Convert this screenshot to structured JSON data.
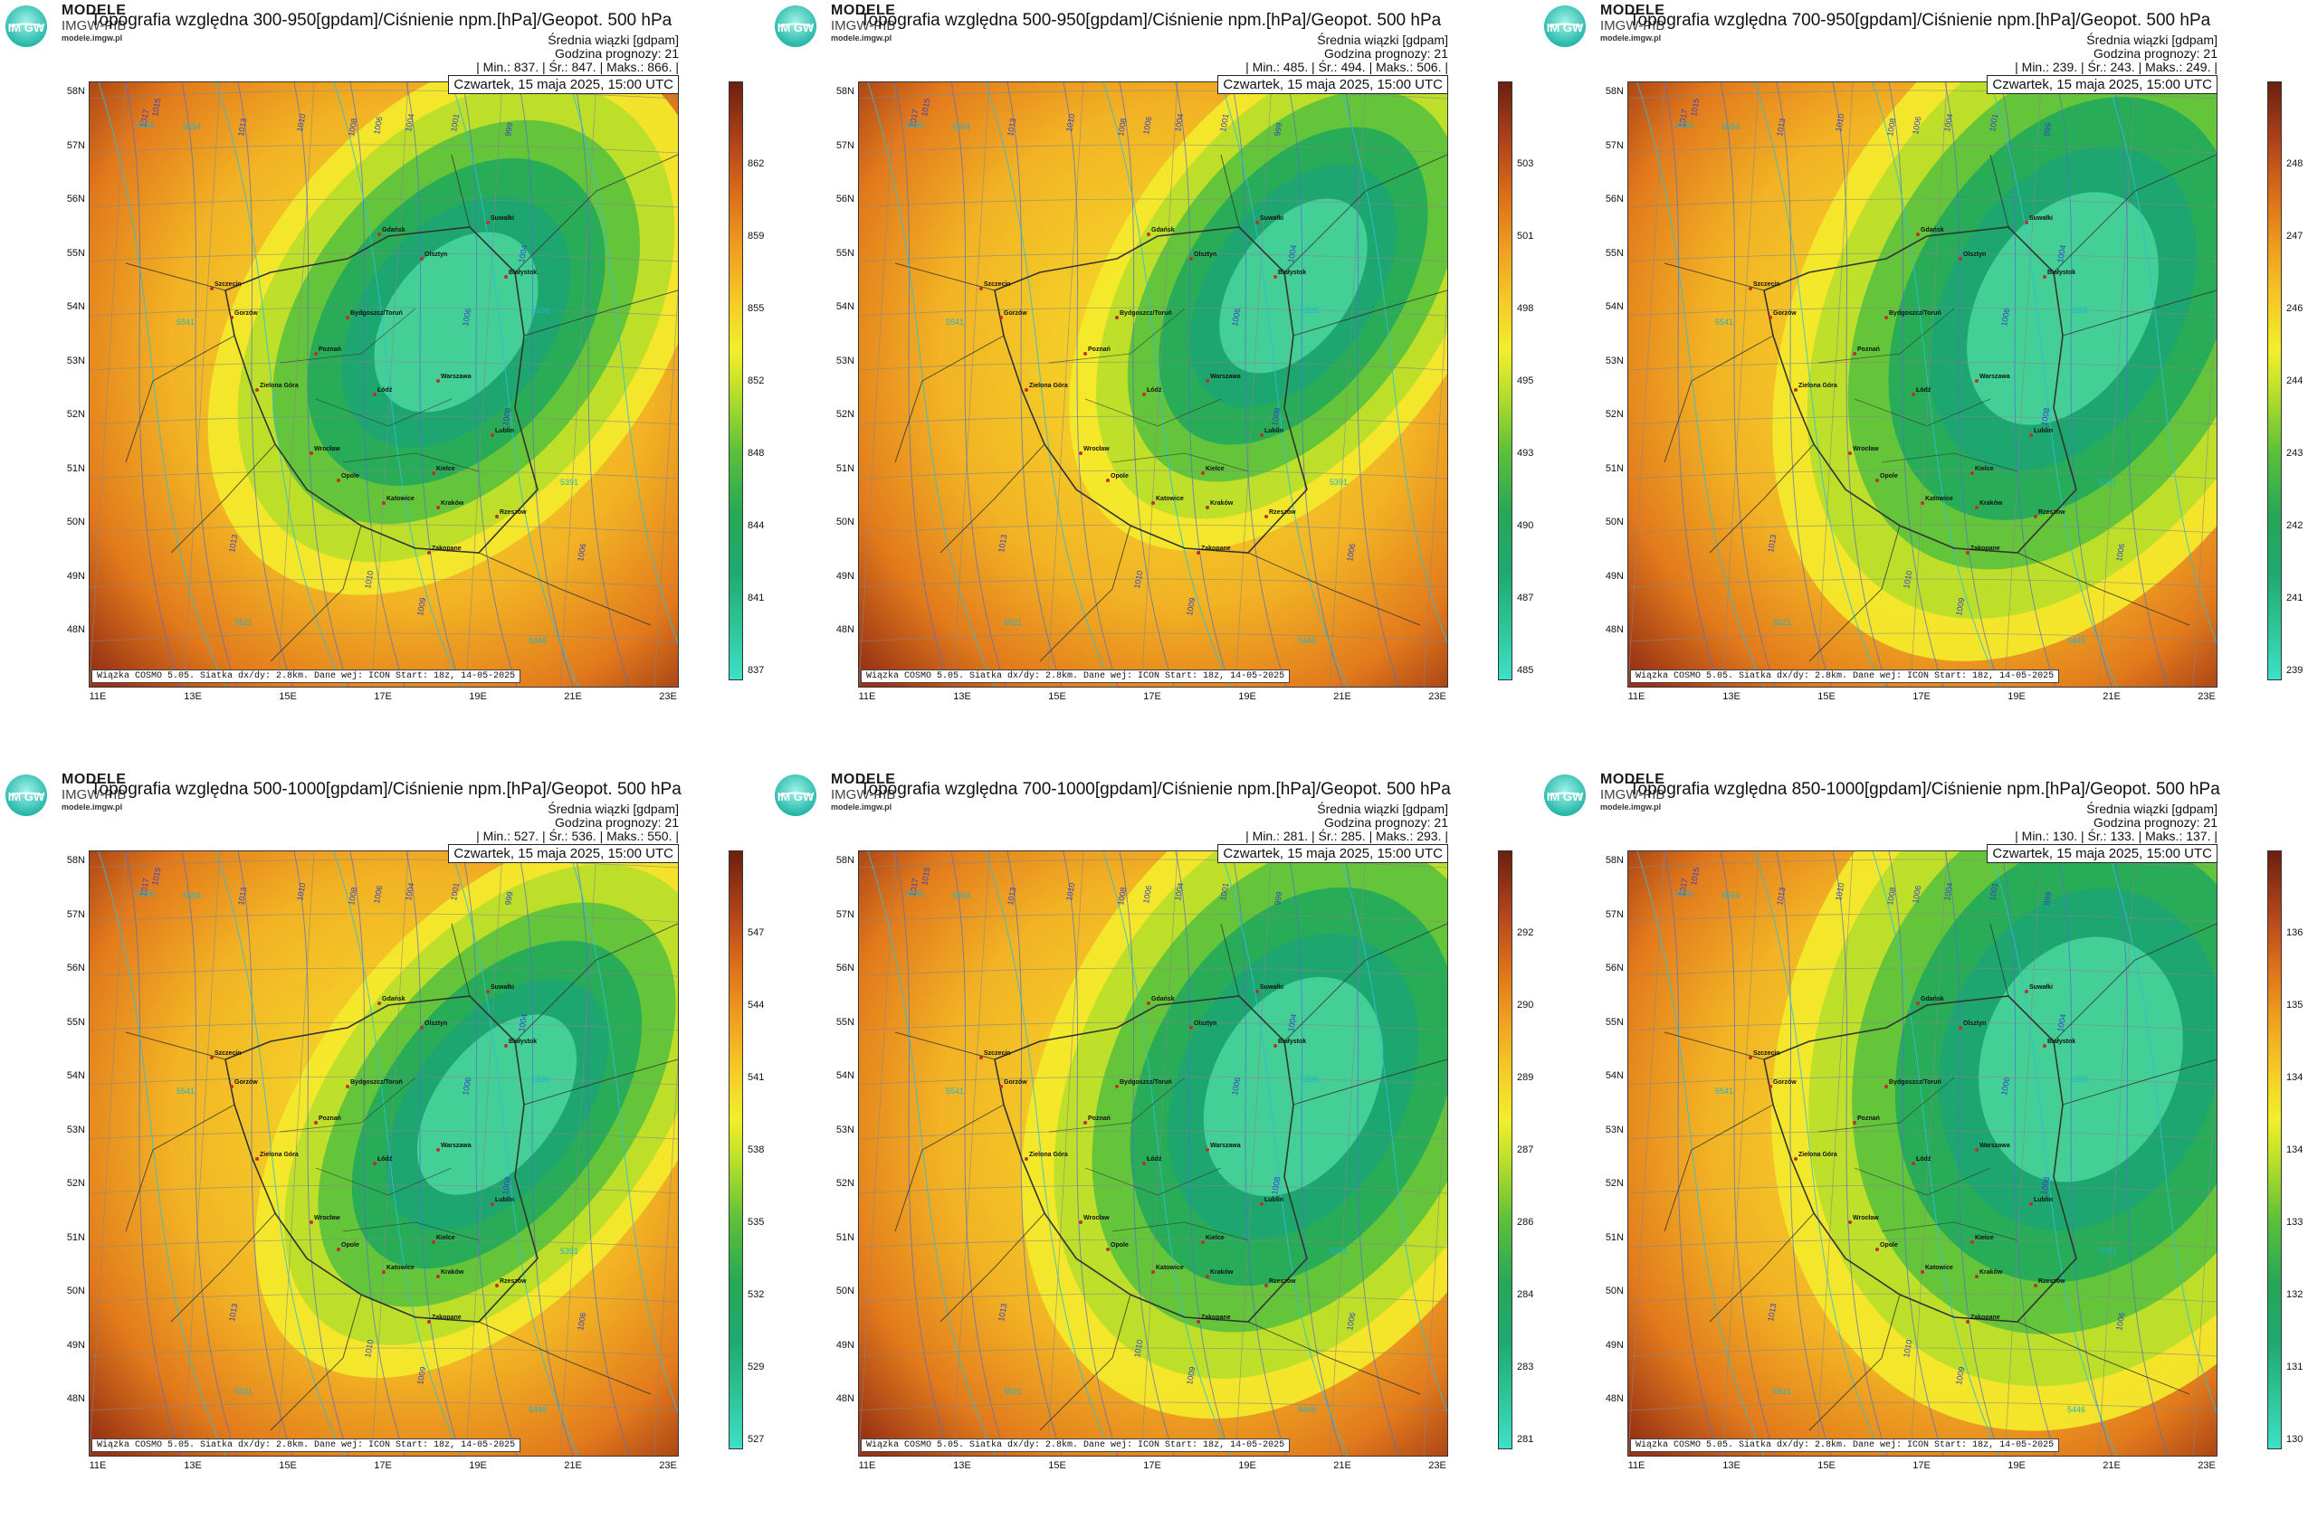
{
  "brand": {
    "line1": "MODELE",
    "line2": "IMGW-PIB",
    "url": "modele.imgw.pl",
    "logo_text": "IM GW"
  },
  "colors": {
    "cold": "#3de0c9",
    "green": "#1fa971",
    "yellow": "#f2ef2a",
    "orange": "#ef9f20",
    "hot": "#6b2010",
    "isobar": "#3340c8",
    "geopot": "#1bb4d0"
  },
  "common": {
    "subtitle": "Średnia wiązki [gdpam]",
    "forecast_hour": "Godzina prognozy: 21",
    "date": "Czwartek, 15 maja 2025, 15:00 UTC",
    "footer": "Wiązka COSMO 5.05. Siatka dx/dy: 2.8km. Dane wej: ICON Start: 18z, 14-05-2025",
    "lat_labels": [
      "58N",
      "57N",
      "56N",
      "55N",
      "54N",
      "53N",
      "52N",
      "51N",
      "50N",
      "49N",
      "48N"
    ],
    "lon_labels": [
      "11E",
      "13E",
      "15E",
      "17E",
      "19E",
      "21E",
      "23E"
    ],
    "cities": [
      "Gdańsk",
      "Olsztyn",
      "Suwałki",
      "Białystok",
      "Szczecin",
      "Gorzów",
      "Bydgoszcz/Toruń",
      "Poznań",
      "Zielona Góra",
      "Łódź",
      "Warszawa",
      "Lublin",
      "Wrocław",
      "Opole",
      "Katowice",
      "Kielce",
      "Kraków",
      "Rzeszów",
      "Zakopane"
    ],
    "isobar_labels": [
      "1017",
      "1015",
      "1013",
      "1010",
      "1008",
      "1006",
      "1004",
      "1001",
      "999",
      "1004",
      "1006",
      "1008",
      "1013",
      "1010",
      "1009",
      "1006"
    ],
    "geopot_labels": [
      "5566",
      "5554",
      "5541",
      "5326",
      "5391",
      "5521",
      "5446"
    ]
  },
  "panels": [
    {
      "title": "Topografia względna 300-950[gpdam]/Ciśnienie npm.[hPa]/Geopot. 500 hPa",
      "stats": "| Min.:    837. | Śr.:    847. | Maks.:    866. |",
      "colorbar": [
        "862",
        "859",
        "855",
        "852",
        "848",
        "844",
        "841",
        "837"
      ]
    },
    {
      "title": "Topografia względna 500-950[gpdam]/Ciśnienie npm.[hPa]/Geopot. 500 hPa",
      "stats": "| Min.:    485. | Śr.:    494. | Maks.:    506. |",
      "colorbar": [
        "503",
        "501",
        "498",
        "495",
        "493",
        "490",
        "487",
        "485"
      ]
    },
    {
      "title": "Topografia względna 700-950[gpdam]/Ciśnienie npm.[hPa]/Geopot. 500 hPa",
      "stats": "| Min.:    239. | Śr.:    243. | Maks.:    249. |",
      "colorbar": [
        "248",
        "247",
        "246",
        "244",
        "243",
        "242",
        "241",
        "239"
      ]
    },
    {
      "title": "Topografia względna 500-1000[gpdam]/Ciśnienie npm.[hPa]/Geopot. 500 hPa",
      "stats": "| Min.:    527. | Śr.:    536. | Maks.:    550. |",
      "colorbar": [
        "547",
        "544",
        "541",
        "538",
        "535",
        "532",
        "529",
        "527"
      ]
    },
    {
      "title": "Topografia względna 700-1000[gpdam]/Ciśnienie npm.[hPa]/Geopot. 500 hPa",
      "stats": "| Min.:    281. | Śr.:    285. | Maks.:    293. |",
      "colorbar": [
        "292",
        "290",
        "289",
        "287",
        "286",
        "284",
        "283",
        "281"
      ]
    },
    {
      "title": "Topografia względna 850-1000[gpdam]/Ciśnienie npm.[hPa]/Geopot. 500 hPa",
      "stats": "| Min.:    130. | Śr.:    133. | Maks.:    137. |",
      "colorbar": [
        "136",
        "135",
        "134",
        "134",
        "133",
        "132",
        "131",
        "130"
      ]
    }
  ]
}
